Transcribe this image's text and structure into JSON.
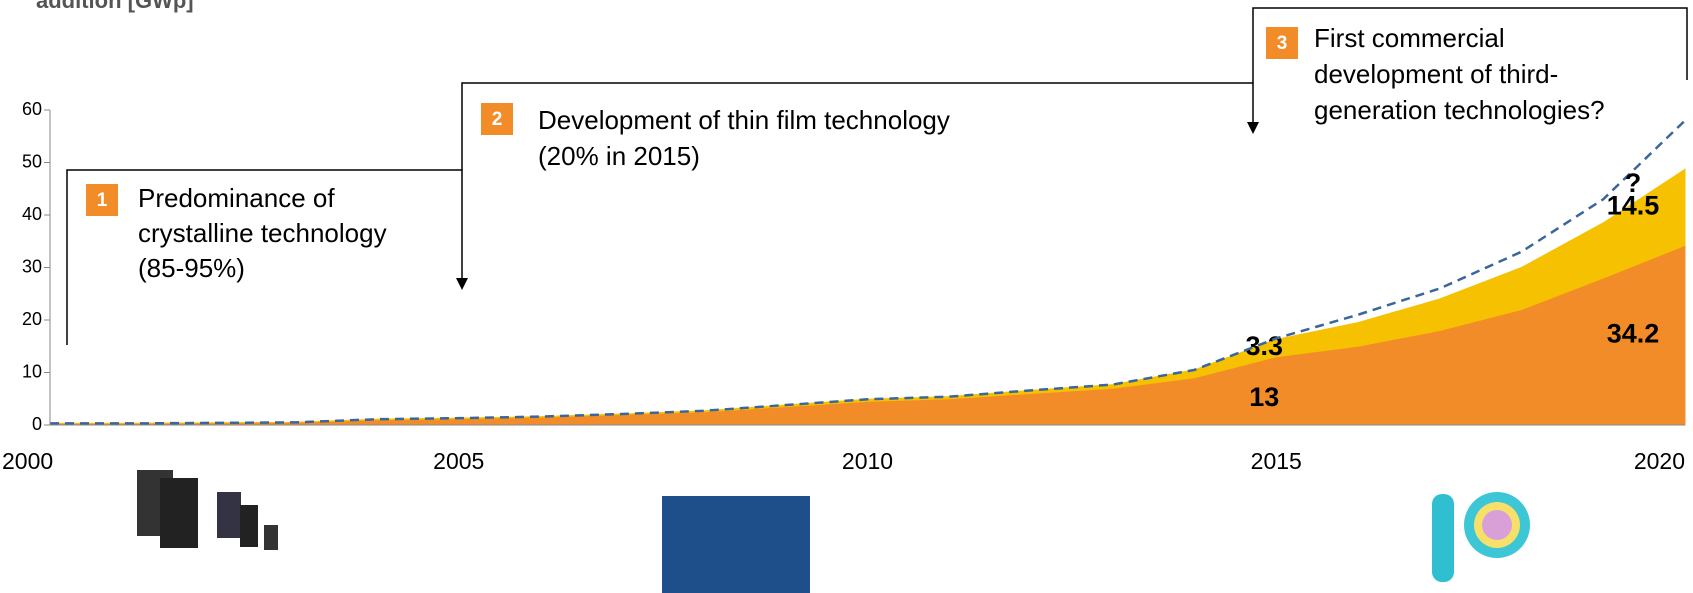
{
  "chart_data": {
    "type": "area",
    "y_title": "addition [GWp]",
    "x": [
      2000,
      2001,
      2002,
      2003,
      2004,
      2005,
      2006,
      2007,
      2008,
      2009,
      2010,
      2011,
      2012,
      2013,
      2014,
      2015,
      2016,
      2017,
      2018,
      2019,
      2020
    ],
    "xlim": [
      2000,
      2020
    ],
    "xticks": [
      2000,
      2005,
      2010,
      2015,
      2020
    ],
    "ylim": [
      0,
      60
    ],
    "yticks": [
      0,
      10,
      20,
      30,
      40,
      50,
      60
    ],
    "series": [
      {
        "color": "#f28c28",
        "values": [
          0.3,
          0.3,
          0.4,
          0.5,
          1,
          1.2,
          1.5,
          2,
          2.5,
          3.5,
          4.5,
          5,
          6,
          7,
          9,
          13,
          15,
          18,
          22,
          28,
          34.2
        ],
        "value_labels": [
          null,
          null,
          null,
          null,
          null,
          null,
          null,
          null,
          null,
          null,
          null,
          null,
          null,
          null,
          null,
          "13",
          null,
          null,
          null,
          null,
          "34.2"
        ]
      },
      {
        "color": "#f5c100",
        "values": [
          0,
          0,
          0,
          0,
          0.1,
          0.1,
          0.1,
          0.1,
          0.2,
          0.3,
          0.4,
          0.4,
          0.6,
          0.7,
          1.5,
          3.3,
          4.5,
          6,
          8,
          10.5,
          14.5
        ],
        "value_labels": [
          null,
          null,
          null,
          null,
          null,
          null,
          null,
          null,
          null,
          null,
          null,
          null,
          null,
          null,
          null,
          "3.3",
          null,
          null,
          null,
          null,
          "14.5"
        ]
      },
      {
        "color": "#3b6699",
        "style": "dashed",
        "values": [
          0.3,
          0.3,
          0.4,
          0.5,
          1.1,
          1.3,
          1.6,
          2.1,
          2.7,
          3.8,
          4.9,
          5.4,
          6.6,
          7.7,
          10.5,
          16.5,
          21,
          26,
          33,
          43,
          58
        ]
      }
    ],
    "annotations": [
      "?"
    ],
    "phases": [
      {
        "number": "1",
        "lines": [
          "Predominance of",
          "crystalline technology",
          "(85-95%)"
        ]
      },
      {
        "number": "2",
        "lines": [
          "Development of thin film technology",
          " (20% in 2015)"
        ]
      },
      {
        "number": "3",
        "lines": [
          "First commercial",
          "development of third-",
          "generation technologies?"
        ]
      }
    ]
  }
}
